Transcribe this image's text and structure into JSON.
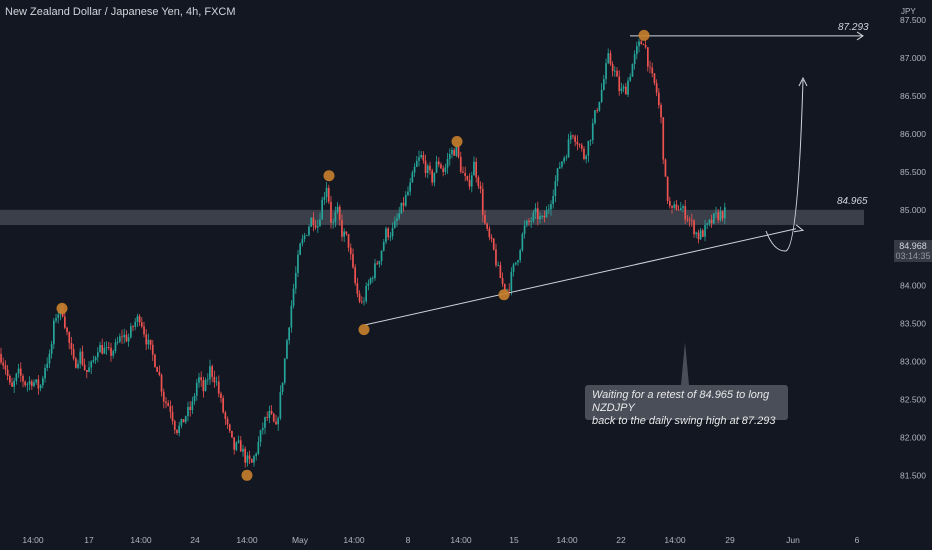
{
  "header": {
    "title": "New Zealand Dollar / Japanese Yen, 4h, FXCM",
    "currency": "JPY"
  },
  "price_tag": {
    "price": "84.968",
    "countdown": "03:14:35"
  },
  "annotations": {
    "target_label": "87.293",
    "level_label": "84.965",
    "callout_line1": "Waiting for a retest of 84.965 to long NZDJPY",
    "callout_line2": "back to the daily swing high at 87.293"
  },
  "colors": {
    "background": "#131722",
    "up": "#26a69a",
    "down": "#ef5350",
    "marker": "#c87f2b",
    "zone": "#5d606b",
    "line": "#d1d4dc",
    "axis_text": "#b2b5be"
  },
  "chart_data": {
    "type": "candlestick",
    "title": "New Zealand Dollar / Japanese Yen, 4h, FXCM",
    "y_unit": "JPY",
    "ylim": [
      81.3,
      87.95
    ],
    "y_ticks": [
      "87.500",
      "87.000",
      "86.500",
      "86.000",
      "85.500",
      "85.000",
      "84.500",
      "84.000",
      "83.500",
      "83.000",
      "82.500",
      "82.000",
      "81.500"
    ],
    "x_ticks": [
      "14:00",
      "17",
      "14:00",
      "24",
      "14:00",
      "May",
      "14:00",
      "8",
      "14:00",
      "15",
      "14:00",
      "22",
      "14:00",
      "29",
      "Jun",
      "6"
    ],
    "grid": false,
    "price_path": [
      [
        0,
        83.1
      ],
      [
        6,
        82.9
      ],
      [
        11,
        82.6
      ],
      [
        18,
        82.85
      ],
      [
        26,
        82.7
      ],
      [
        32,
        82.75
      ],
      [
        40,
        82.65
      ],
      [
        46,
        83.0
      ],
      [
        50,
        83.05
      ],
      [
        55,
        83.6
      ],
      [
        62,
        83.7
      ],
      [
        68,
        83.3
      ],
      [
        74,
        82.95
      ],
      [
        80,
        83.1
      ],
      [
        86,
        82.85
      ],
      [
        92,
        82.95
      ],
      [
        98,
        83.2
      ],
      [
        104,
        83.15
      ],
      [
        110,
        83.1
      ],
      [
        116,
        83.2
      ],
      [
        122,
        83.35
      ],
      [
        128,
        83.3
      ],
      [
        134,
        83.5
      ],
      [
        140,
        83.6
      ],
      [
        146,
        83.3
      ],
      [
        152,
        83.1
      ],
      [
        158,
        82.9
      ],
      [
        164,
        82.5
      ],
      [
        170,
        82.4
      ],
      [
        176,
        82.1
      ],
      [
        181,
        82.15
      ],
      [
        186,
        82.3
      ],
      [
        192,
        82.4
      ],
      [
        198,
        82.8
      ],
      [
        204,
        82.6
      ],
      [
        210,
        82.9
      ],
      [
        216,
        82.75
      ],
      [
        222,
        82.4
      ],
      [
        228,
        82.1
      ],
      [
        234,
        81.85
      ],
      [
        240,
        81.9
      ],
      [
        246,
        81.7
      ],
      [
        252,
        81.65
      ],
      [
        258,
        81.9
      ],
      [
        264,
        82.2
      ],
      [
        270,
        82.3
      ],
      [
        276,
        82.1
      ],
      [
        282,
        82.7
      ],
      [
        288,
        83.4
      ],
      [
        294,
        84.0
      ],
      [
        300,
        84.5
      ],
      [
        306,
        84.7
      ],
      [
        312,
        84.9
      ],
      [
        318,
        84.8
      ],
      [
        322,
        85.1
      ],
      [
        327,
        85.35
      ],
      [
        332,
        84.75
      ],
      [
        337,
        85.0
      ],
      [
        342,
        84.7
      ],
      [
        348,
        84.6
      ],
      [
        354,
        84.1
      ],
      [
        358,
        83.85
      ],
      [
        362,
        83.75
      ],
      [
        368,
        84.0
      ],
      [
        374,
        84.2
      ],
      [
        380,
        84.4
      ],
      [
        386,
        84.7
      ],
      [
        392,
        84.7
      ],
      [
        398,
        84.9
      ],
      [
        404,
        85.1
      ],
      [
        410,
        85.3
      ],
      [
        416,
        85.6
      ],
      [
        421,
        85.7
      ],
      [
        426,
        85.55
      ],
      [
        432,
        85.4
      ],
      [
        438,
        85.65
      ],
      [
        444,
        85.5
      ],
      [
        450,
        85.75
      ],
      [
        456,
        85.8
      ],
      [
        462,
        85.5
      ],
      [
        468,
        85.3
      ],
      [
        474,
        85.6
      ],
      [
        480,
        85.3
      ],
      [
        484,
        84.85
      ],
      [
        488,
        84.65
      ],
      [
        493,
        84.5
      ],
      [
        498,
        84.2
      ],
      [
        503,
        84.0
      ],
      [
        508,
        83.95
      ],
      [
        513,
        84.2
      ],
      [
        518,
        84.4
      ],
      [
        524,
        84.75
      ],
      [
        530,
        84.85
      ],
      [
        536,
        84.95
      ],
      [
        542,
        84.85
      ],
      [
        548,
        85.0
      ],
      [
        554,
        85.3
      ],
      [
        560,
        85.6
      ],
      [
        566,
        85.75
      ],
      [
        572,
        86.05
      ],
      [
        578,
        85.9
      ],
      [
        584,
        85.7
      ],
      [
        590,
        85.95
      ],
      [
        596,
        86.3
      ],
      [
        602,
        86.6
      ],
      [
        608,
        87.0
      ],
      [
        614,
        86.85
      ],
      [
        620,
        86.55
      ],
      [
        626,
        86.6
      ],
      [
        632,
        86.9
      ],
      [
        638,
        87.15
      ],
      [
        644,
        87.25
      ],
      [
        650,
        86.8
      ],
      [
        656,
        86.6
      ],
      [
        662,
        86.1
      ],
      [
        664,
        85.5
      ],
      [
        667,
        85.2
      ],
      [
        671,
        84.95
      ],
      [
        676,
        85.05
      ],
      [
        682,
        85.0
      ],
      [
        688,
        84.9
      ],
      [
        694,
        84.75
      ],
      [
        698,
        84.65
      ],
      [
        703,
        84.7
      ],
      [
        709,
        84.8
      ],
      [
        715,
        84.9
      ],
      [
        721,
        84.95
      ],
      [
        727,
        84.97
      ]
    ],
    "key_level": 84.965,
    "target": 87.293,
    "swing_points": [
      [
        62,
        83.7
      ],
      [
        247,
        81.5
      ],
      [
        329,
        85.45
      ],
      [
        364,
        83.42
      ],
      [
        457,
        85.9
      ],
      [
        504,
        83.88
      ],
      [
        644,
        87.3
      ]
    ]
  }
}
